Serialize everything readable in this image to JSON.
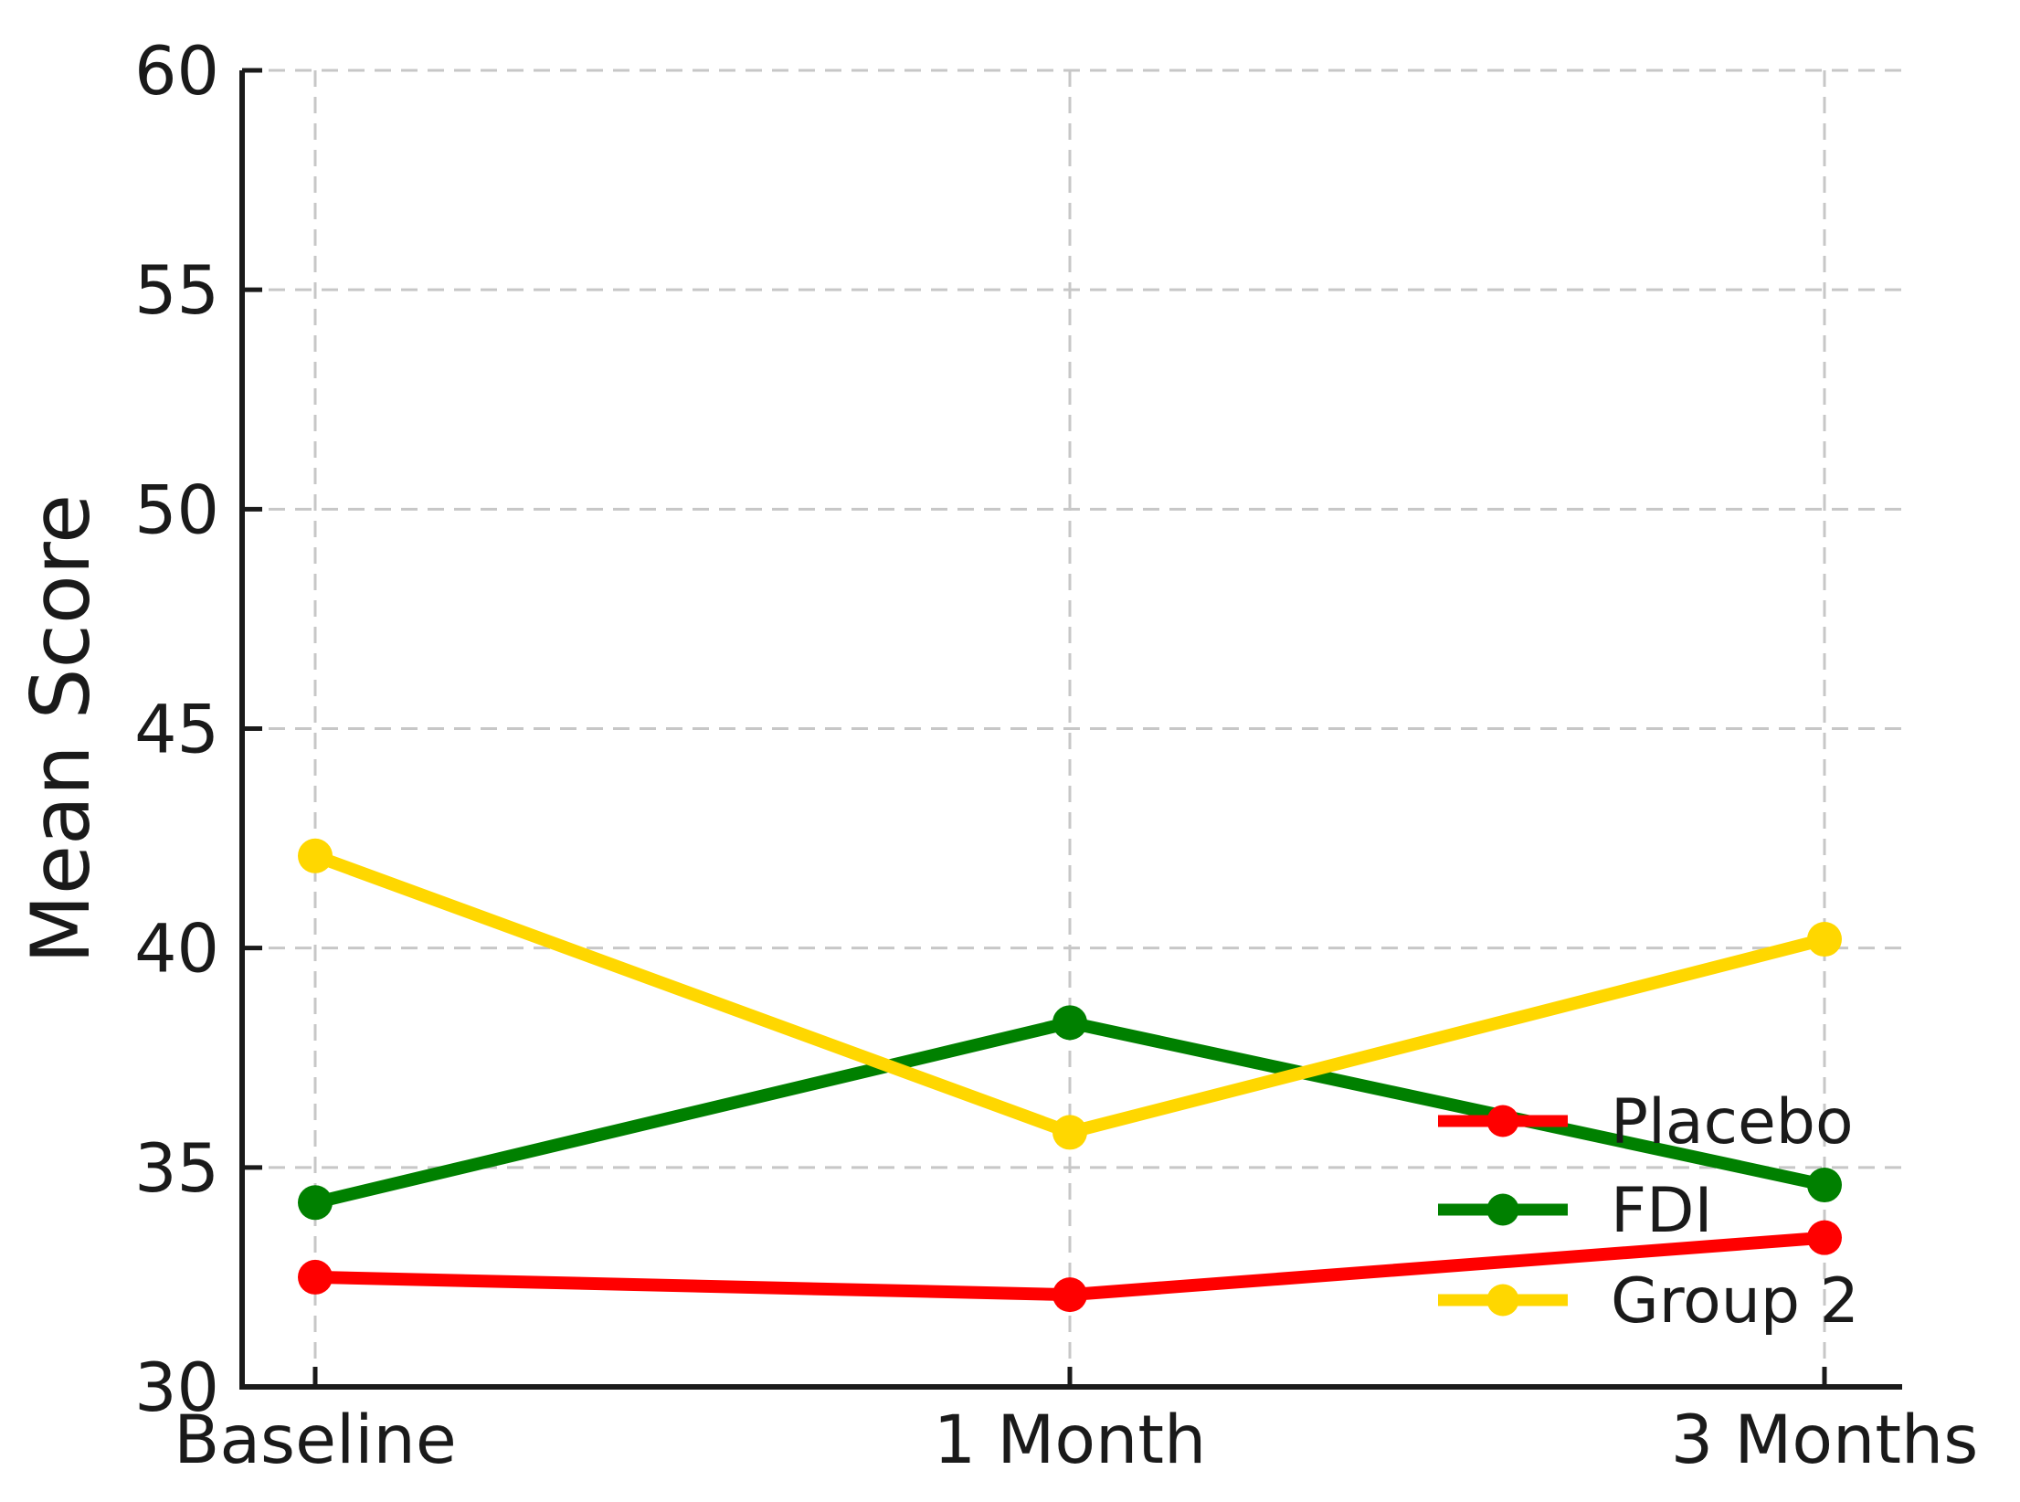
{
  "chart_data": {
    "type": "line",
    "title": "",
    "xlabel": "",
    "ylabel": "Mean Score",
    "categories": [
      "Baseline",
      "1 Month",
      "3 Months"
    ],
    "series": [
      {
        "name": "Placebo",
        "color": "#ff0000",
        "values": [
          32.5,
          32.1,
          33.4
        ]
      },
      {
        "name": "FDI",
        "color": "#008000",
        "values": [
          34.2,
          38.3,
          34.6
        ]
      },
      {
        "name": "Group 2",
        "color": "#ffd700",
        "values": [
          42.1,
          35.8,
          40.2
        ]
      }
    ],
    "ylim": [
      30,
      60
    ],
    "yticks": [
      30,
      35,
      40,
      45,
      50,
      55,
      60
    ],
    "grid": true,
    "grid_style": "dashed",
    "legend_position": "lower-right",
    "legend_frame": false,
    "marker": "circle"
  },
  "colors": {
    "background": "#ffffff",
    "grid": "#c7c7c7",
    "axis": "#1a1a1a",
    "text": "#1a1a1a"
  }
}
